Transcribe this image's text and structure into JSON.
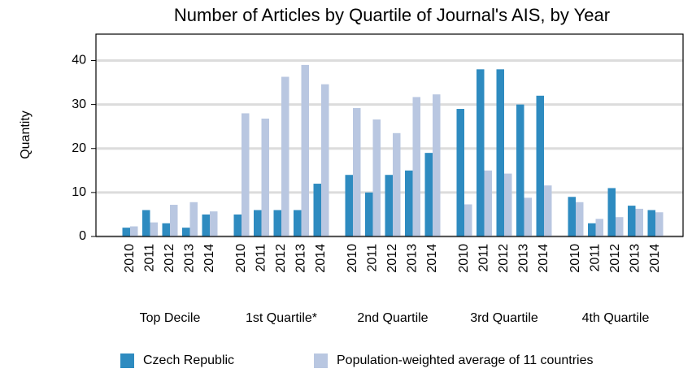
{
  "chart_data": {
    "type": "bar",
    "title": "Number of Articles by Quartile of Journal's AIS, by Year",
    "y_label": "Quantity",
    "groups": [
      "Top Decile",
      "1st Quartile*",
      "2nd Quartile",
      "3rd Quartile",
      "4th Quartile"
    ],
    "categories": [
      "2010",
      "2011",
      "2012",
      "2013",
      "2014",
      "2010",
      "2011",
      "2012",
      "2013",
      "2014",
      "2010",
      "2011",
      "2012",
      "2013",
      "2014",
      "2010",
      "2011",
      "2012",
      "2013",
      "2014",
      "2010",
      "2011",
      "2012",
      "2013",
      "2014"
    ],
    "series": [
      {
        "name": "Czech Republic",
        "color": "#2e8bc0",
        "values": [
          2,
          6,
          3,
          2,
          5,
          5,
          6,
          6,
          6,
          12,
          14,
          10,
          14,
          15,
          19,
          29,
          38,
          38,
          30,
          32,
          9,
          3,
          11,
          7,
          6
        ]
      },
      {
        "name": "Population-weighted average of 11 countries",
        "color": "#b9c7e1",
        "values": [
          2.3,
          3.2,
          7.2,
          7.8,
          5.7,
          28,
          26.8,
          36.3,
          39,
          34.6,
          29.2,
          26.6,
          23.5,
          31.7,
          32.3,
          7.3,
          15,
          14.3,
          8.8,
          11.6,
          7.8,
          4,
          4.4,
          6.3,
          5.5
        ]
      }
    ],
    "ylim": [
      0,
      46
    ],
    "yticks": [
      0,
      10,
      20,
      30,
      40
    ],
    "grid": true
  }
}
